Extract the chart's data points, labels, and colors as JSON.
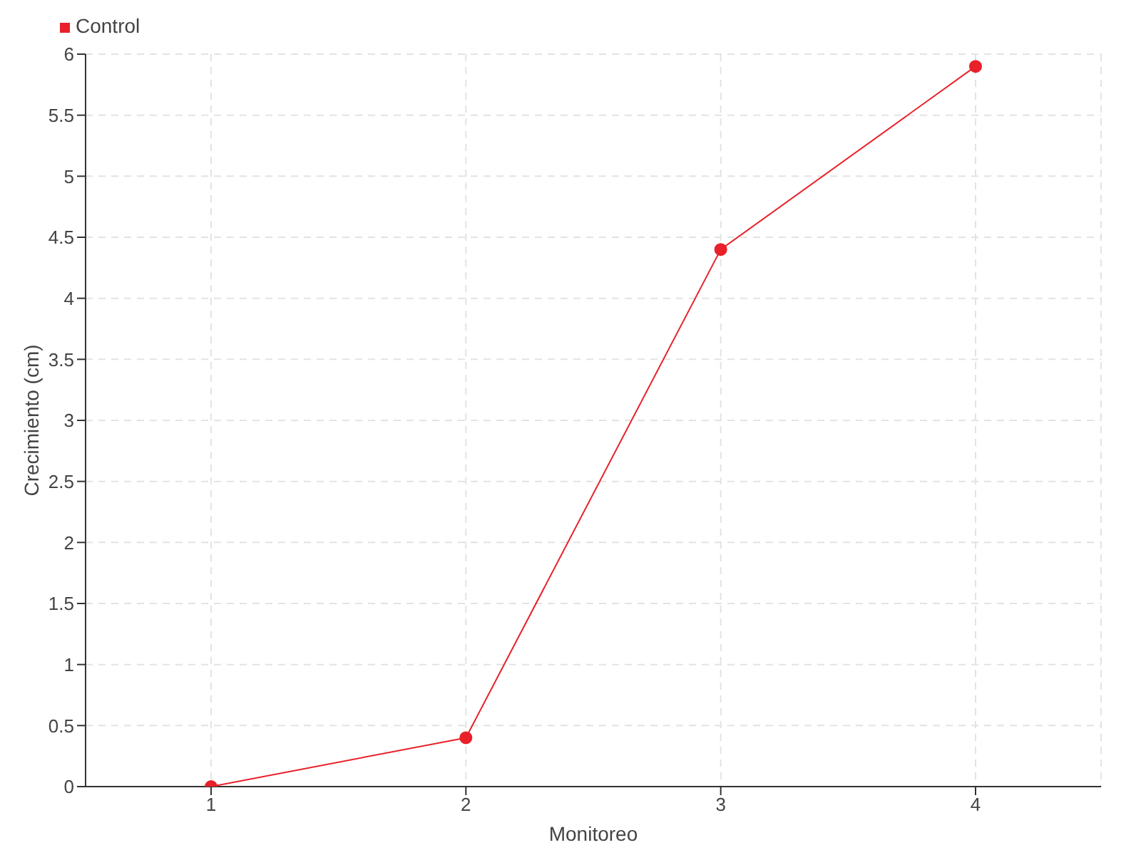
{
  "chart_data": {
    "type": "line",
    "xlabel": "Monitoreo",
    "ylabel": "Crecimiento (cm)",
    "categories": [
      "1",
      "2",
      "3",
      "4"
    ],
    "series": [
      {
        "name": "Control",
        "color": "#e8212a",
        "values": [
          0,
          0.4,
          4.4,
          5.9
        ]
      }
    ],
    "ylim": [
      0,
      6
    ],
    "yticks": [
      0,
      0.5,
      1,
      1.5,
      2,
      2.5,
      3,
      3.5,
      4,
      4.5,
      5,
      5.5,
      6
    ],
    "grid": true,
    "legend": "top left",
    "marker": "circle",
    "line_style": "solid"
  }
}
